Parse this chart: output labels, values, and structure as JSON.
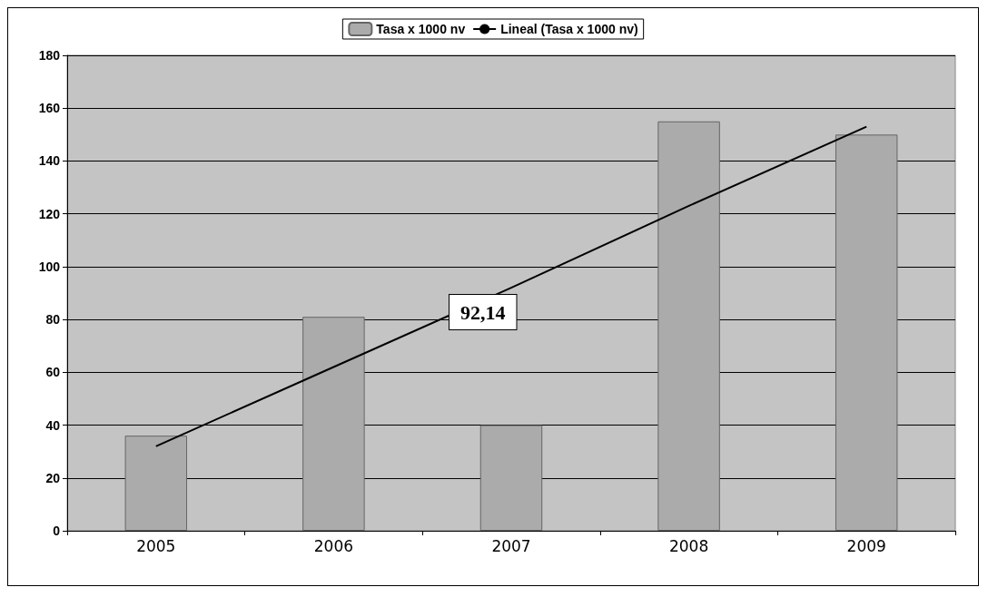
{
  "chart_data": {
    "type": "bar",
    "categories": [
      "2005",
      "2006",
      "2007",
      "2008",
      "2009"
    ],
    "series": [
      {
        "name": "Tasa x 1000 nv",
        "color": "#ababab",
        "values": [
          36,
          81,
          40,
          155,
          150
        ]
      },
      {
        "name": "Lineal (Tasa x 1000 nv)",
        "type": "line",
        "color": "#000000",
        "values": [
          32,
          62,
          92,
          123,
          153
        ]
      }
    ],
    "ylim": [
      0,
      180
    ],
    "yticks": [
      0,
      20,
      40,
      60,
      80,
      100,
      120,
      140,
      160,
      180
    ],
    "grid": "y",
    "legend": "top",
    "marker": "none",
    "annotations": [
      "92,14"
    ]
  }
}
